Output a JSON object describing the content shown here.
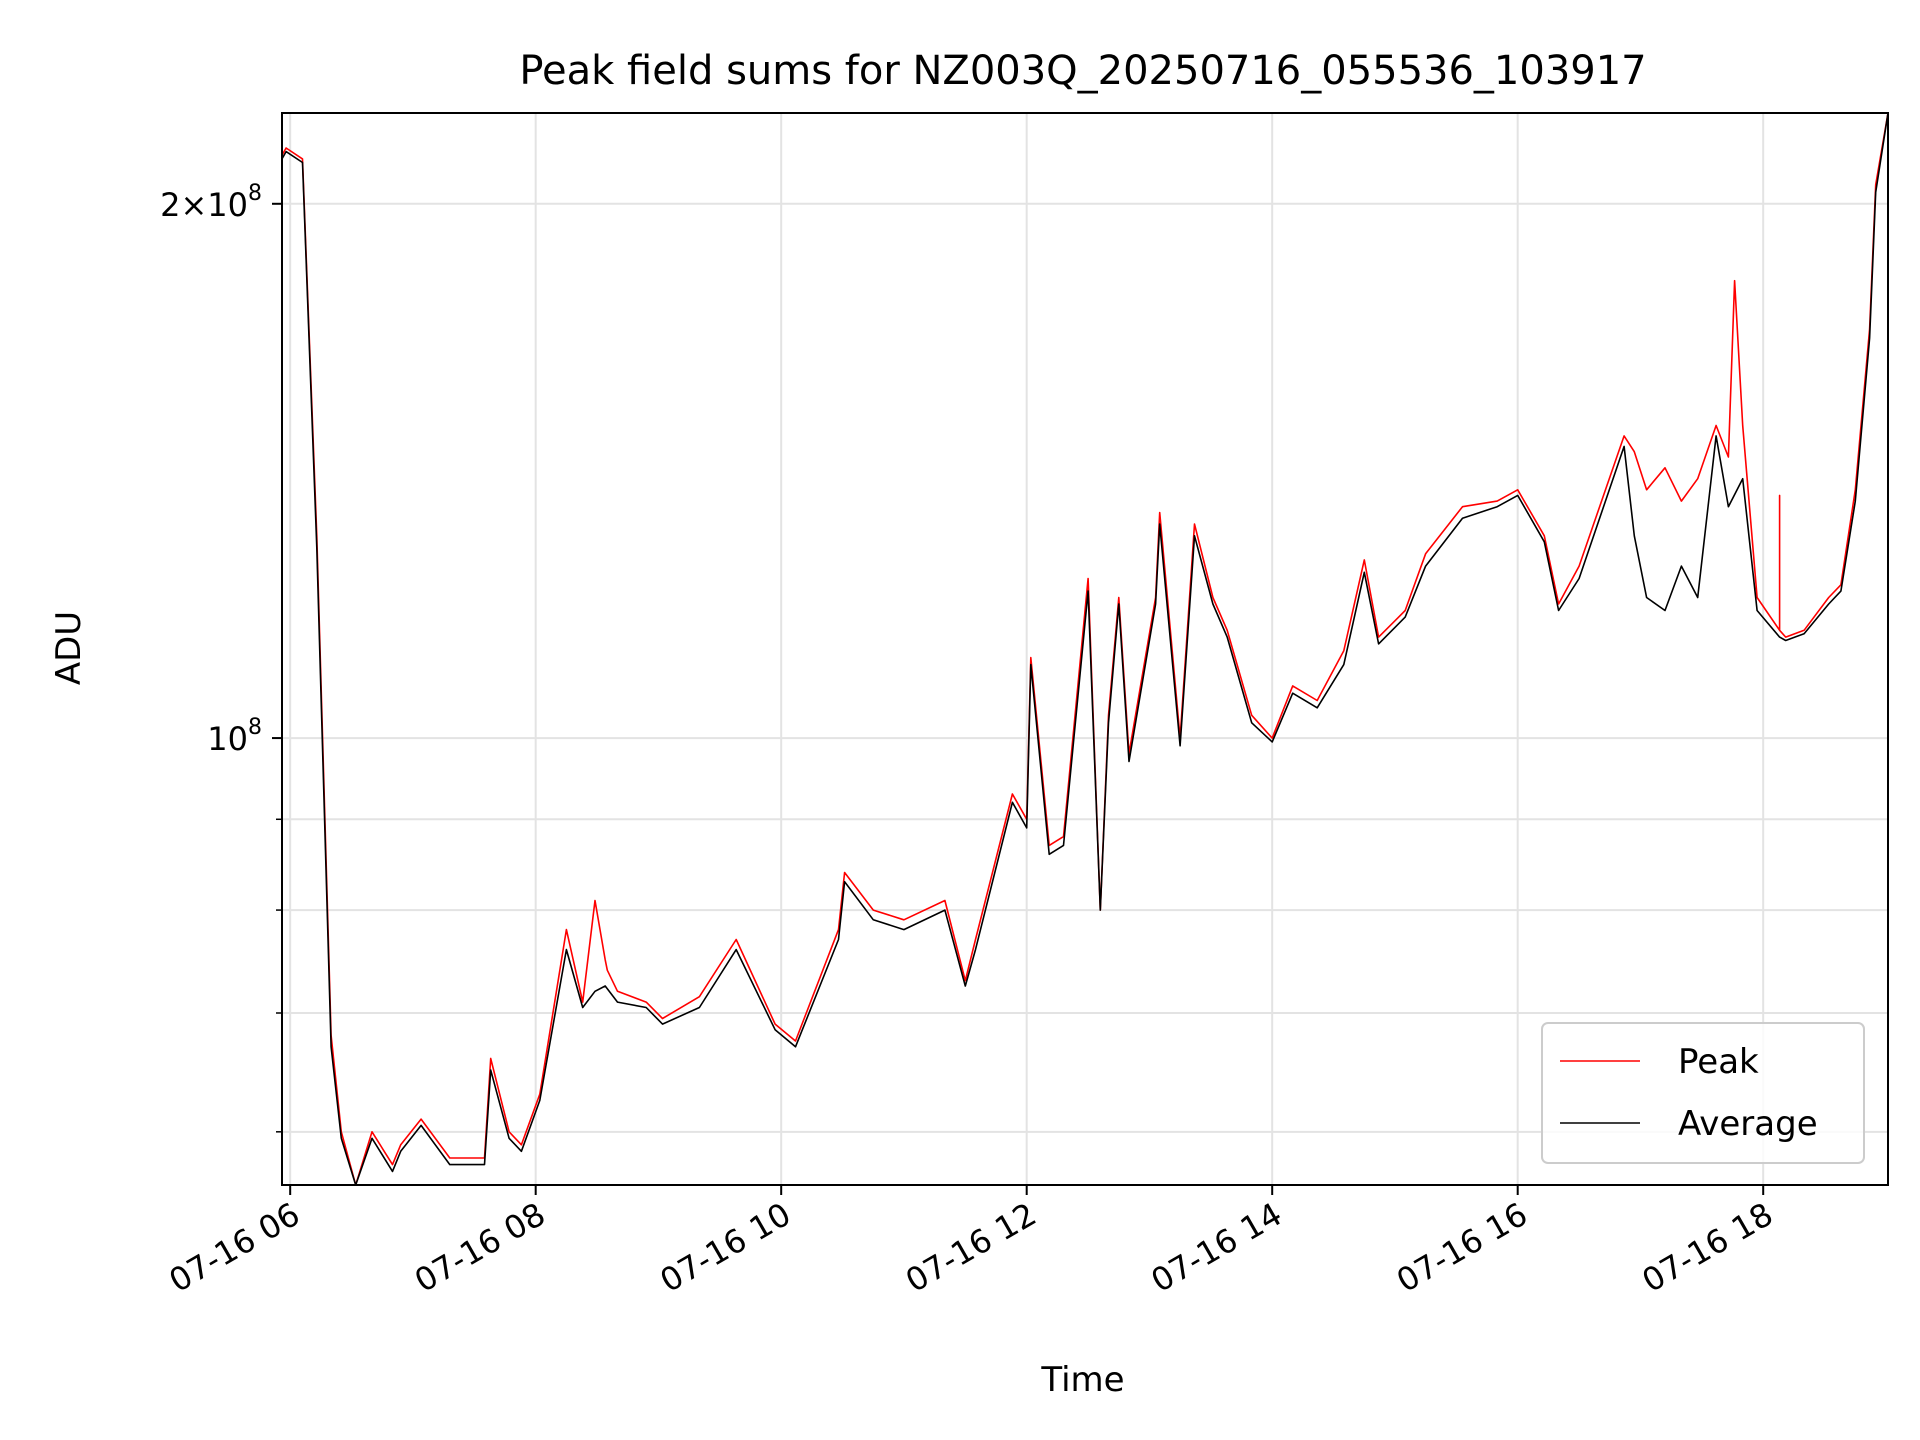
{
  "chart_data": {
    "type": "line",
    "title": "Peak field sums for NZ003Q_20250716_055536_103917",
    "xlabel": "Time",
    "ylabel": "ADU",
    "y_scale": "log",
    "ylim": [
      56000000,
      225000000
    ],
    "xlim": [
      "2025-07-16 05:56",
      "2025-07-16 19:01"
    ],
    "grid": true,
    "legend_position": "lower-right",
    "x_ticks": [
      {
        "t": "2025-07-16 06:00",
        "label": "07-16 06"
      },
      {
        "t": "2025-07-16 08:00",
        "label": "07-16 08"
      },
      {
        "t": "2025-07-16 10:00",
        "label": "07-16 10"
      },
      {
        "t": "2025-07-16 12:00",
        "label": "07-16 12"
      },
      {
        "t": "2025-07-16 14:00",
        "label": "07-16 14"
      },
      {
        "t": "2025-07-16 16:00",
        "label": "07-16 16"
      },
      {
        "t": "2025-07-16 18:00",
        "label": "07-16 18"
      }
    ],
    "y_ticks_major": [
      {
        "value": 100000000,
        "base": "10",
        "exp": "8"
      },
      {
        "value": 200000000,
        "mant": "2",
        "base": "10",
        "exp": "8"
      }
    ],
    "y_ticks_minor": [
      60000000,
      70000000,
      80000000,
      90000000
    ],
    "series": [
      {
        "name": "Peak",
        "color": "#ff0000",
        "x": [
          "2025-07-16 05:56",
          "2025-07-16 05:58",
          "2025-07-16 06:06",
          "2025-07-16 06:13",
          "2025-07-16 06:20",
          "2025-07-16 06:25",
          "2025-07-16 06:32",
          "2025-07-16 06:40",
          "2025-07-16 06:50",
          "2025-07-16 06:54",
          "2025-07-16 07:04",
          "2025-07-16 07:18",
          "2025-07-16 07:35",
          "2025-07-16 07:38",
          "2025-07-16 07:47",
          "2025-07-16 07:53",
          "2025-07-16 08:02",
          "2025-07-16 08:15",
          "2025-07-16 08:23",
          "2025-07-16 08:29",
          "2025-07-16 08:34",
          "2025-07-16 08:35",
          "2025-07-16 08:40",
          "2025-07-16 08:54",
          "2025-07-16 09:02",
          "2025-07-16 09:20",
          "2025-07-16 09:38",
          "2025-07-16 09:57",
          "2025-07-16 10:07",
          "2025-07-16 10:28",
          "2025-07-16 10:31",
          "2025-07-16 10:45",
          "2025-07-16 11:00",
          "2025-07-16 11:20",
          "2025-07-16 11:30",
          "2025-07-16 11:35",
          "2025-07-16 11:53",
          "2025-07-16 12:00",
          "2025-07-16 12:02",
          "2025-07-16 12:11",
          "2025-07-16 12:18",
          "2025-07-16 12:30",
          "2025-07-16 12:36",
          "2025-07-16 12:40",
          "2025-07-16 12:45",
          "2025-07-16 12:50",
          "2025-07-16 13:03",
          "2025-07-16 13:05",
          "2025-07-16 13:15",
          "2025-07-16 13:22",
          "2025-07-16 13:31",
          "2025-07-16 13:38",
          "2025-07-16 13:50",
          "2025-07-16 14:00",
          "2025-07-16 14:10",
          "2025-07-16 14:22",
          "2025-07-16 14:35",
          "2025-07-16 14:45",
          "2025-07-16 14:52",
          "2025-07-16 15:05",
          "2025-07-16 15:15",
          "2025-07-16 15:33",
          "2025-07-16 15:50",
          "2025-07-16 16:00",
          "2025-07-16 16:13",
          "2025-07-16 16:20",
          "2025-07-16 16:30",
          "2025-07-16 16:52",
          "2025-07-16 16:57",
          "2025-07-16 17:03",
          "2025-07-16 17:12",
          "2025-07-16 17:20",
          "2025-07-16 17:28",
          "2025-07-16 17:37",
          "2025-07-16 17:43",
          "2025-07-16 17:46",
          "2025-07-16 17:50",
          "2025-07-16 17:57",
          "2025-07-16 18:08",
          "2025-07-16 18:08",
          "2025-07-16 18:08",
          "2025-07-16 18:11",
          "2025-07-16 18:20",
          "2025-07-16 18:32",
          "2025-07-16 18:38",
          "2025-07-16 18:45",
          "2025-07-16 18:52",
          "2025-07-16 18:55",
          "2025-07-16 19:01"
        ],
        "values": [
          213000000,
          215000000,
          212000000,
          130000000,
          68000000,
          60000000,
          56000000,
          60000000,
          57500000,
          59000000,
          61000000,
          58000000,
          58000000,
          66000000,
          60000000,
          59000000,
          63000000,
          78000000,
          71000000,
          81000000,
          75000000,
          74000000,
          72000000,
          71000000,
          69500000,
          71500000,
          77000000,
          69000000,
          67500000,
          78000000,
          84000000,
          80000000,
          79000000,
          81000000,
          73000000,
          77000000,
          93000000,
          90000000,
          111000000,
          87000000,
          88000000,
          123000000,
          80000000,
          103000000,
          120000000,
          98000000,
          120000000,
          134000000,
          100000000,
          132000000,
          120000000,
          115000000,
          103000000,
          100000000,
          107000000,
          105000000,
          112000000,
          126000000,
          114000000,
          118000000,
          127000000,
          135000000,
          136000000,
          138000000,
          130000000,
          119000000,
          125000000,
          148000000,
          145000000,
          138000000,
          142000000,
          136000000,
          140000000,
          150000000,
          144000000,
          181000000,
          150000000,
          120000000,
          115000000,
          137000000,
          115000000,
          114000000,
          115000000,
          120000000,
          122000000,
          138000000,
          170000000,
          205000000,
          225000000
        ]
      },
      {
        "name": "Average",
        "color": "#000000",
        "x": [
          "2025-07-16 05:56",
          "2025-07-16 05:58",
          "2025-07-16 06:06",
          "2025-07-16 06:13",
          "2025-07-16 06:20",
          "2025-07-16 06:25",
          "2025-07-16 06:32",
          "2025-07-16 06:40",
          "2025-07-16 06:50",
          "2025-07-16 06:54",
          "2025-07-16 07:04",
          "2025-07-16 07:18",
          "2025-07-16 07:35",
          "2025-07-16 07:38",
          "2025-07-16 07:47",
          "2025-07-16 07:53",
          "2025-07-16 08:02",
          "2025-07-16 08:15",
          "2025-07-16 08:23",
          "2025-07-16 08:29",
          "2025-07-16 08:34",
          "2025-07-16 08:40",
          "2025-07-16 08:54",
          "2025-07-16 09:02",
          "2025-07-16 09:20",
          "2025-07-16 09:38",
          "2025-07-16 09:57",
          "2025-07-16 10:07",
          "2025-07-16 10:28",
          "2025-07-16 10:31",
          "2025-07-16 10:45",
          "2025-07-16 11:00",
          "2025-07-16 11:20",
          "2025-07-16 11:30",
          "2025-07-16 11:35",
          "2025-07-16 11:53",
          "2025-07-16 12:00",
          "2025-07-16 12:02",
          "2025-07-16 12:11",
          "2025-07-16 12:18",
          "2025-07-16 12:30",
          "2025-07-16 12:36",
          "2025-07-16 12:40",
          "2025-07-16 12:45",
          "2025-07-16 12:50",
          "2025-07-16 13:03",
          "2025-07-16 13:05",
          "2025-07-16 13:15",
          "2025-07-16 13:22",
          "2025-07-16 13:31",
          "2025-07-16 13:38",
          "2025-07-16 13:50",
          "2025-07-16 14:00",
          "2025-07-16 14:10",
          "2025-07-16 14:22",
          "2025-07-16 14:35",
          "2025-07-16 14:45",
          "2025-07-16 14:52",
          "2025-07-16 15:05",
          "2025-07-16 15:15",
          "2025-07-16 15:33",
          "2025-07-16 15:50",
          "2025-07-16 16:00",
          "2025-07-16 16:13",
          "2025-07-16 16:20",
          "2025-07-16 16:30",
          "2025-07-16 16:52",
          "2025-07-16 16:57",
          "2025-07-16 17:03",
          "2025-07-16 17:12",
          "2025-07-16 17:20",
          "2025-07-16 17:28",
          "2025-07-16 17:37",
          "2025-07-16 17:43",
          "2025-07-16 17:50",
          "2025-07-16 17:57",
          "2025-07-16 18:08",
          "2025-07-16 18:11",
          "2025-07-16 18:20",
          "2025-07-16 18:32",
          "2025-07-16 18:38",
          "2025-07-16 18:45",
          "2025-07-16 18:52",
          "2025-07-16 18:55",
          "2025-07-16 19:01"
        ],
        "values": [
          212000000,
          214000000,
          211000000,
          128000000,
          67000000,
          59500000,
          56000000,
          59500000,
          57000000,
          58500000,
          60500000,
          57500000,
          57500000,
          65000000,
          59500000,
          58500000,
          62500000,
          76000000,
          70500000,
          72000000,
          72500000,
          71000000,
          70500000,
          69000000,
          70500000,
          76000000,
          68500000,
          67000000,
          77000000,
          83000000,
          79000000,
          78000000,
          80000000,
          72500000,
          76000000,
          92000000,
          89000000,
          110000000,
          86000000,
          87000000,
          121000000,
          80000000,
          102000000,
          119000000,
          97000000,
          119000000,
          132000000,
          99000000,
          130000000,
          119000000,
          114000000,
          102000000,
          99500000,
          106000000,
          104000000,
          110000000,
          124000000,
          113000000,
          117000000,
          125000000,
          133000000,
          135000000,
          137000000,
          129000000,
          118000000,
          123000000,
          146000000,
          130000000,
          120000000,
          118000000,
          125000000,
          120000000,
          148000000,
          135000000,
          140000000,
          118000000,
          114000000,
          113500000,
          114500000,
          119000000,
          121000000,
          136000000,
          168000000,
          203000000,
          225000000
        ]
      }
    ]
  }
}
